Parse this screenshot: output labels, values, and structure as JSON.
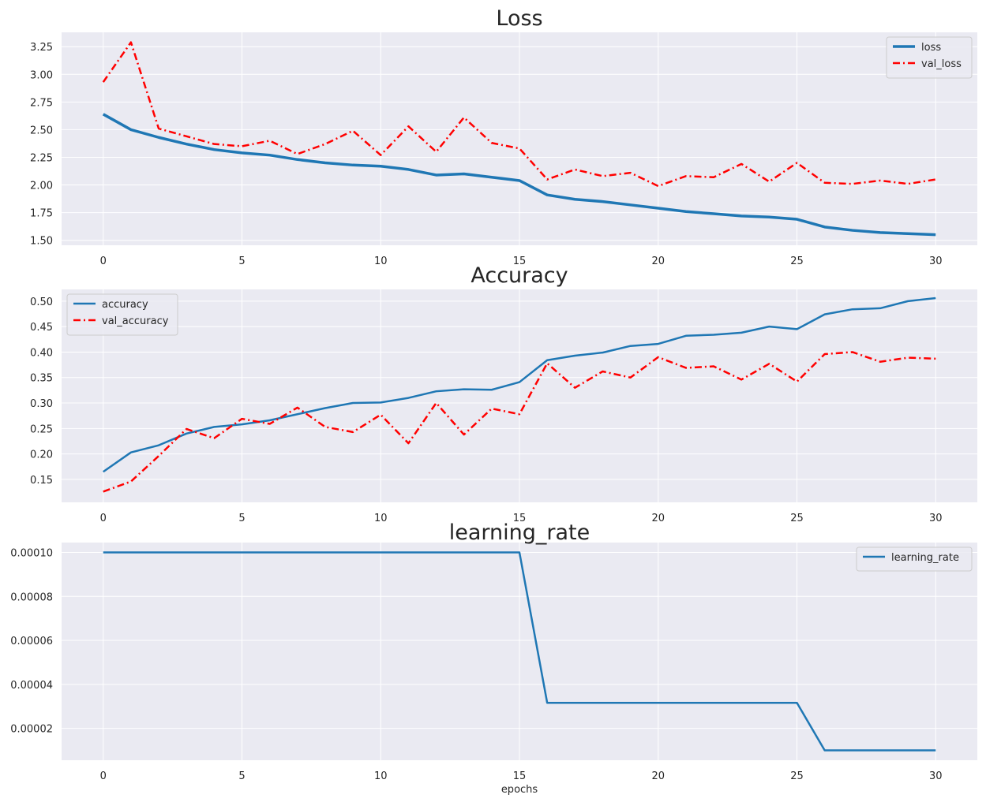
{
  "chart_data": [
    {
      "type": "line",
      "title": "Loss",
      "xlabel": "",
      "ylabel": "",
      "xlim": [
        -1.5,
        31.5
      ],
      "ylim": [
        1.455,
        3.38
      ],
      "xticks": [
        0,
        5,
        10,
        15,
        20,
        25,
        30
      ],
      "yticks": [
        1.5,
        1.75,
        2.0,
        2.25,
        2.5,
        2.75,
        3.0,
        3.25
      ],
      "ytick_labels": [
        "1.50",
        "1.75",
        "2.00",
        "2.25",
        "2.50",
        "2.75",
        "3.00",
        "3.25"
      ],
      "grid": true,
      "legend_position": "top-right",
      "x": [
        0,
        1,
        2,
        3,
        4,
        5,
        6,
        7,
        8,
        9,
        10,
        11,
        12,
        13,
        14,
        15,
        16,
        17,
        18,
        19,
        20,
        21,
        22,
        23,
        24,
        25,
        26,
        27,
        28,
        29,
        30
      ],
      "series": [
        {
          "name": "loss",
          "color": "#1f77b4",
          "style": "solid",
          "width": 3.5,
          "values": [
            2.64,
            2.5,
            2.43,
            2.37,
            2.32,
            2.29,
            2.27,
            2.23,
            2.2,
            2.18,
            2.17,
            2.14,
            2.09,
            2.1,
            2.07,
            2.04,
            1.91,
            1.87,
            1.85,
            1.82,
            1.79,
            1.76,
            1.74,
            1.72,
            1.71,
            1.69,
            1.62,
            1.59,
            1.57,
            1.56,
            1.55
          ]
        },
        {
          "name": "val_loss",
          "color": "#ff0000",
          "style": "dashdot",
          "width": 2.5,
          "values": [
            2.93,
            3.29,
            2.51,
            2.44,
            2.37,
            2.35,
            2.4,
            2.28,
            2.37,
            2.49,
            2.27,
            2.53,
            2.3,
            2.61,
            2.38,
            2.33,
            2.05,
            2.14,
            2.08,
            2.11,
            1.99,
            2.08,
            2.07,
            2.19,
            2.03,
            2.2,
            2.02,
            2.01,
            2.04,
            2.01,
            2.05
          ]
        }
      ]
    },
    {
      "type": "line",
      "title": "Accuracy",
      "xlabel": "",
      "ylabel": "",
      "xlim": [
        -1.5,
        31.5
      ],
      "ylim": [
        0.105,
        0.523
      ],
      "xticks": [
        0,
        5,
        10,
        15,
        20,
        25,
        30
      ],
      "yticks": [
        0.15,
        0.2,
        0.25,
        0.3,
        0.35,
        0.4,
        0.45,
        0.5
      ],
      "ytick_labels": [
        "0.15",
        "0.20",
        "0.25",
        "0.30",
        "0.35",
        "0.40",
        "0.45",
        "0.50"
      ],
      "grid": true,
      "legend_position": "top-left",
      "x": [
        0,
        1,
        2,
        3,
        4,
        5,
        6,
        7,
        8,
        9,
        10,
        11,
        12,
        13,
        14,
        15,
        16,
        17,
        18,
        19,
        20,
        21,
        22,
        23,
        24,
        25,
        26,
        27,
        28,
        29,
        30
      ],
      "series": [
        {
          "name": "accuracy",
          "color": "#1f77b4",
          "style": "solid",
          "width": 2.5,
          "values": [
            0.165,
            0.203,
            0.217,
            0.24,
            0.253,
            0.258,
            0.266,
            0.278,
            0.29,
            0.3,
            0.301,
            0.31,
            0.323,
            0.327,
            0.326,
            0.341,
            0.384,
            0.393,
            0.399,
            0.412,
            0.416,
            0.432,
            0.434,
            0.438,
            0.45,
            0.445,
            0.474,
            0.484,
            0.486,
            0.5,
            0.506
          ]
        },
        {
          "name": "val_accuracy",
          "color": "#ff0000",
          "style": "dashdot",
          "width": 2.5,
          "values": [
            0.126,
            0.146,
            0.196,
            0.249,
            0.231,
            0.269,
            0.259,
            0.291,
            0.253,
            0.243,
            0.277,
            0.221,
            0.3,
            0.238,
            0.289,
            0.278,
            0.378,
            0.33,
            0.362,
            0.35,
            0.39,
            0.369,
            0.372,
            0.346,
            0.377,
            0.342,
            0.396,
            0.4,
            0.381,
            0.389,
            0.387
          ]
        }
      ]
    },
    {
      "type": "line",
      "title": "learning_rate",
      "xlabel": "epochs",
      "ylabel": "",
      "xlim": [
        -1.5,
        31.5
      ],
      "ylim": [
        5.5e-06,
        0.0001045
      ],
      "xticks": [
        0,
        5,
        10,
        15,
        20,
        25,
        30
      ],
      "yticks": [
        2e-05,
        4e-05,
        6e-05,
        8e-05,
        0.0001
      ],
      "ytick_labels": [
        "0.00002",
        "0.00004",
        "0.00006",
        "0.00008",
        "0.00010"
      ],
      "grid": true,
      "legend_position": "top-right",
      "x": [
        0,
        1,
        2,
        3,
        4,
        5,
        6,
        7,
        8,
        9,
        10,
        11,
        12,
        13,
        14,
        15,
        16,
        17,
        18,
        19,
        20,
        21,
        22,
        23,
        24,
        25,
        26,
        27,
        28,
        29,
        30
      ],
      "series": [
        {
          "name": "learning_rate",
          "color": "#1f77b4",
          "style": "solid",
          "width": 2.5,
          "values": [
            0.0001,
            0.0001,
            0.0001,
            0.0001,
            0.0001,
            0.0001,
            0.0001,
            0.0001,
            0.0001,
            0.0001,
            0.0001,
            0.0001,
            0.0001,
            0.0001,
            0.0001,
            0.0001,
            3.16e-05,
            3.16e-05,
            3.16e-05,
            3.16e-05,
            3.16e-05,
            3.16e-05,
            3.16e-05,
            3.16e-05,
            3.16e-05,
            3.16e-05,
            1e-05,
            1e-05,
            1e-05,
            1e-05,
            1e-05
          ]
        }
      ]
    }
  ]
}
